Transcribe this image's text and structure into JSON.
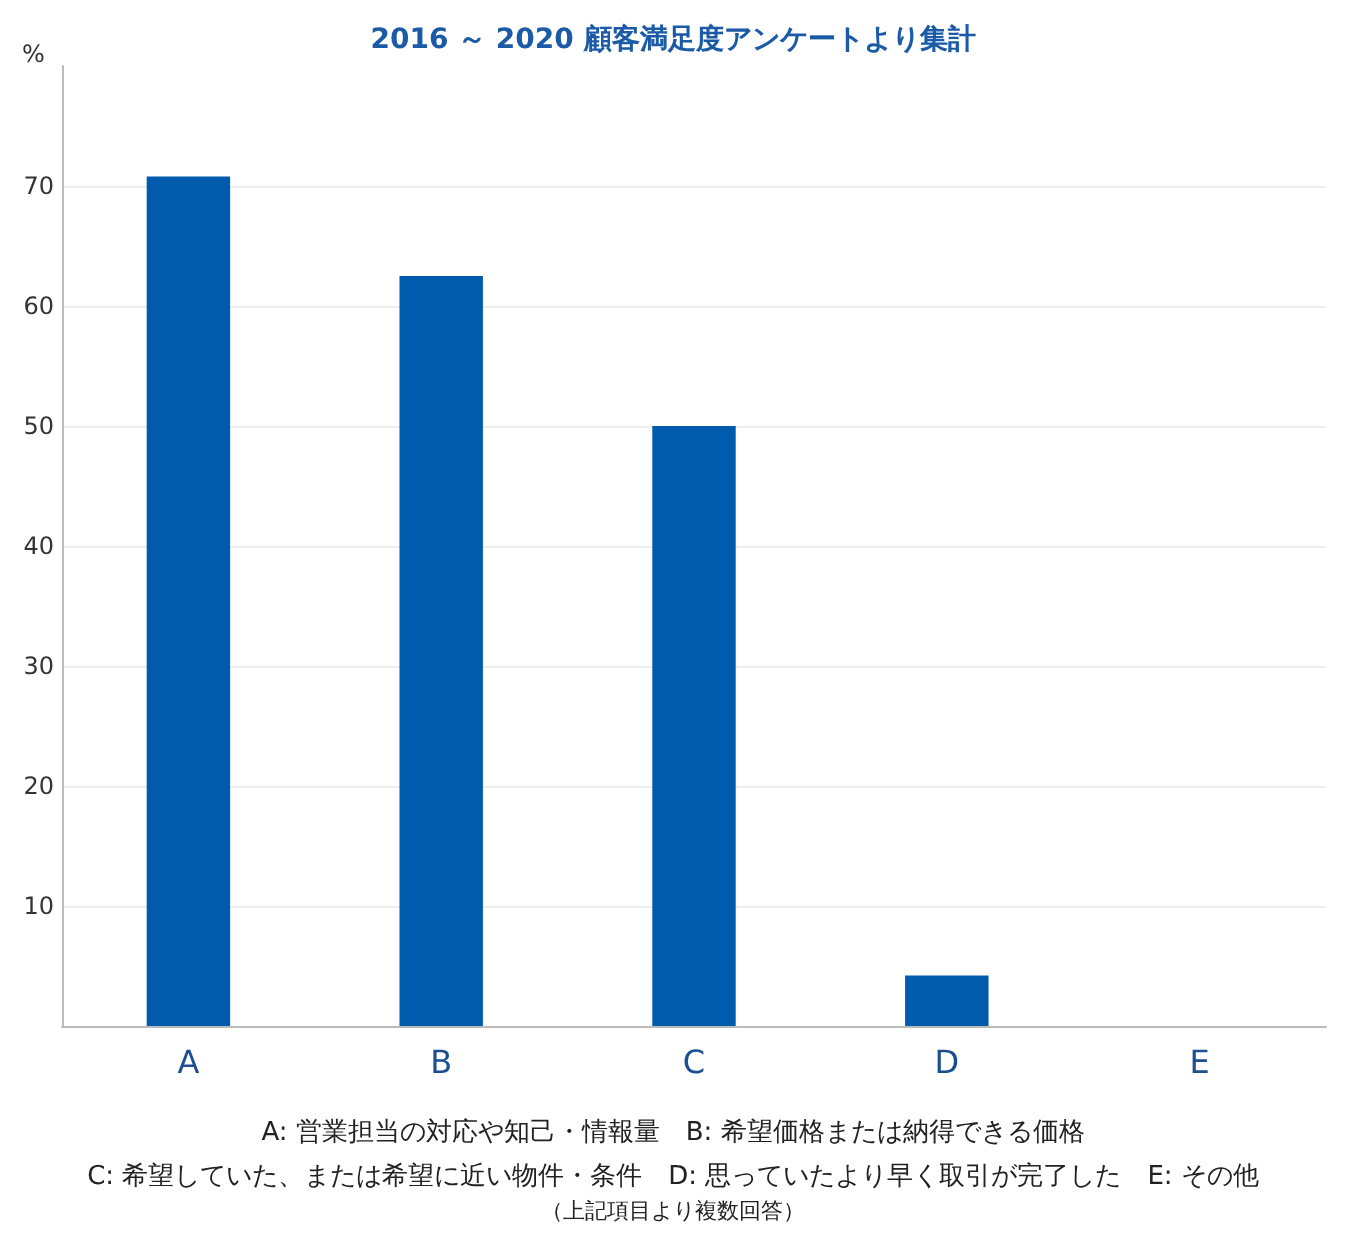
{
  "chart_data": {
    "type": "bar",
    "title": "2016 ～ 2020 顧客満足度アンケートより集計",
    "ylabel": "%",
    "categories": [
      "A",
      "B",
      "C",
      "D",
      "E"
    ],
    "values": [
      70.8,
      62.5,
      50,
      4.2,
      0
    ],
    "color": "#005bac",
    "ylim": [
      0,
      80
    ],
    "yticks": [
      10,
      20,
      30,
      40,
      50,
      60,
      70
    ],
    "grid": "y",
    "annotations": [
      "A: 営業担当の対応や知己・情報量　B: 希望価格または納得できる価格",
      "C: 希望していた、または希望に近い物件・条件　D: 思っていたより早く取引が完了した　E: その他",
      "（上記項目より複数回答）"
    ]
  }
}
